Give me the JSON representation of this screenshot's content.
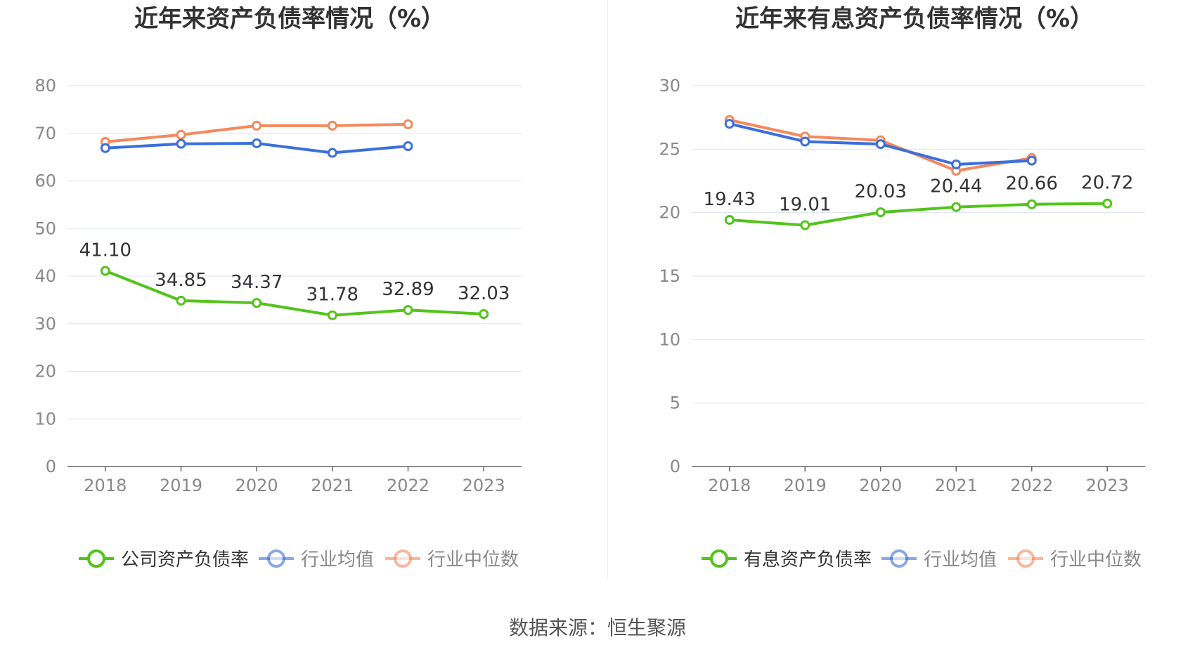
{
  "colors": {
    "company": "#52c41a",
    "average": "#3a6fdc",
    "median": "#f5885a",
    "grid": "#dde3f0",
    "axis": "#666666",
    "tick": "#888888",
    "title": "#333333"
  },
  "source": "数据来源：恒生聚源",
  "chart_data": [
    {
      "type": "line",
      "title": "近年来资产负债率情况（%）",
      "categories": [
        "2018",
        "2019",
        "2020",
        "2021",
        "2022",
        "2023"
      ],
      "ylim": [
        0,
        80
      ],
      "yticks": [
        "0",
        "10",
        "20",
        "30",
        "40",
        "50",
        "60",
        "70",
        "80"
      ],
      "grid": true,
      "legend_position": "bottom",
      "series": [
        {
          "name": "公司资产负债率",
          "key": "company",
          "values": [
            41.1,
            34.85,
            34.37,
            31.78,
            32.89,
            32.03
          ],
          "labels": [
            "41.10",
            "34.85",
            "34.37",
            "31.78",
            "32.89",
            "32.03"
          ]
        },
        {
          "name": "行业均值",
          "key": "average",
          "values": [
            66.9,
            67.8,
            67.9,
            65.9,
            67.3,
            null
          ]
        },
        {
          "name": "行业中位数",
          "key": "median",
          "values": [
            68.2,
            69.7,
            71.6,
            71.6,
            71.9,
            null
          ]
        }
      ]
    },
    {
      "type": "line",
      "title": "近年来有息资产负债率情况（%）",
      "categories": [
        "2018",
        "2019",
        "2020",
        "2021",
        "2022",
        "2023"
      ],
      "ylim": [
        0,
        30
      ],
      "yticks": [
        "0",
        "5",
        "10",
        "15",
        "20",
        "25",
        "30"
      ],
      "grid": true,
      "legend_position": "bottom",
      "series": [
        {
          "name": "有息资产负债率",
          "key": "company",
          "values": [
            19.43,
            19.01,
            20.03,
            20.44,
            20.66,
            20.72
          ],
          "labels": [
            "19.43",
            "19.01",
            "20.03",
            "20.44",
            "20.66",
            "20.72"
          ]
        },
        {
          "name": "行业均值",
          "key": "average",
          "values": [
            27.0,
            25.6,
            25.4,
            23.8,
            24.1,
            null
          ]
        },
        {
          "name": "行业中位数",
          "key": "median",
          "values": [
            27.3,
            26.0,
            25.7,
            23.3,
            24.3,
            null
          ]
        }
      ]
    }
  ]
}
